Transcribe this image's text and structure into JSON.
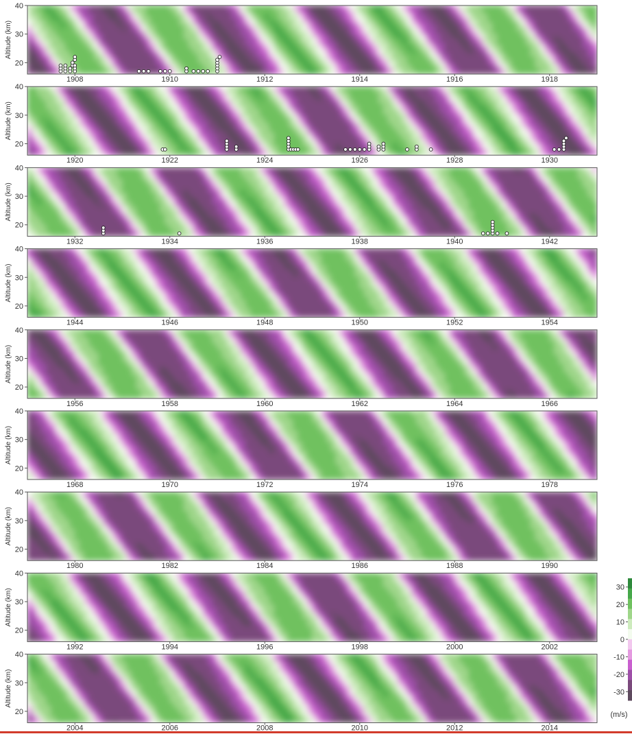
{
  "chart_data": {
    "type": "heatmap",
    "title": "",
    "xlabel": "",
    "ylabel": "Altitude (km)",
    "ylim": [
      16,
      40
    ],
    "y_ticks": [
      20,
      30,
      40
    ],
    "colorbar": {
      "unit": "(m/s)",
      "tick_labels": [
        "30",
        "20",
        "10",
        "0",
        "-10",
        "-20",
        "-30"
      ],
      "tick_values": [
        30,
        20,
        10,
        0,
        -10,
        -20,
        -30
      ],
      "colors_pos_to_neg": [
        "#2f8a3c",
        "#46a84a",
        "#6fc15f",
        "#9fd68a",
        "#cdebbd",
        "#f3fbee",
        "#f2c8ee",
        "#e49ae0",
        "#c95fcf",
        "#9e4fa8",
        "#7a4a7c",
        "#5e4a5e"
      ]
    },
    "colors": {
      "westerly": "#3aa045",
      "easterly": "#8a4a95",
      "neutral": "#f2f8ef"
    },
    "panels": [
      {
        "start_year": 1907.5,
        "tick_years": [
          "1908",
          "1910",
          "1912",
          "1914",
          "1916",
          "1918"
        ],
        "observations": [
          [
            1908.2,
            17
          ],
          [
            1908.2,
            18
          ],
          [
            1908.2,
            19
          ],
          [
            1908.3,
            17
          ],
          [
            1908.3,
            18
          ],
          [
            1908.3,
            19
          ],
          [
            1908.4,
            17
          ],
          [
            1908.4,
            18
          ],
          [
            1908.45,
            19
          ],
          [
            1908.45,
            20
          ],
          [
            1908.5,
            17
          ],
          [
            1908.5,
            18
          ],
          [
            1908.5,
            19
          ],
          [
            1908.5,
            21
          ],
          [
            1908.5,
            22
          ],
          [
            1909.85,
            17
          ],
          [
            1909.95,
            17
          ],
          [
            1910.05,
            17
          ],
          [
            1910.3,
            17
          ],
          [
            1910.4,
            17
          ],
          [
            1910.5,
            17
          ],
          [
            1910.85,
            17
          ],
          [
            1910.85,
            18
          ],
          [
            1911.0,
            17
          ],
          [
            1911.1,
            17
          ],
          [
            1911.2,
            17
          ],
          [
            1911.3,
            17
          ],
          [
            1911.5,
            17
          ],
          [
            1911.5,
            18
          ],
          [
            1911.5,
            19
          ],
          [
            1911.5,
            20
          ],
          [
            1911.5,
            21
          ],
          [
            1911.55,
            22
          ]
        ]
      },
      {
        "start_year": 1919.5,
        "tick_years": [
          "1920",
          "1922",
          "1924",
          "1926",
          "1928",
          "1930"
        ],
        "observations": [
          [
            1922.35,
            18
          ],
          [
            1922.4,
            18
          ],
          [
            1923.7,
            18
          ],
          [
            1923.7,
            19
          ],
          [
            1923.7,
            20
          ],
          [
            1923.7,
            21
          ],
          [
            1923.9,
            18
          ],
          [
            1923.9,
            19
          ],
          [
            1925.0,
            18
          ],
          [
            1925.0,
            19
          ],
          [
            1925.0,
            20
          ],
          [
            1925.0,
            21
          ],
          [
            1925.0,
            22
          ],
          [
            1925.05,
            18
          ],
          [
            1925.1,
            18
          ],
          [
            1925.15,
            18
          ],
          [
            1925.2,
            18
          ],
          [
            1926.2,
            18
          ],
          [
            1926.3,
            18
          ],
          [
            1926.4,
            18
          ],
          [
            1926.5,
            18
          ],
          [
            1926.6,
            18
          ],
          [
            1926.7,
            18
          ],
          [
            1926.7,
            19
          ],
          [
            1926.7,
            20
          ],
          [
            1926.9,
            18
          ],
          [
            1926.9,
            19
          ],
          [
            1927.0,
            18
          ],
          [
            1927.0,
            19
          ],
          [
            1927.0,
            20
          ],
          [
            1927.5,
            18
          ],
          [
            1927.7,
            18
          ],
          [
            1927.7,
            19
          ],
          [
            1928.0,
            18
          ],
          [
            1930.6,
            18
          ],
          [
            1930.7,
            18
          ],
          [
            1930.8,
            18
          ],
          [
            1930.8,
            19
          ],
          [
            1930.8,
            20
          ],
          [
            1930.8,
            21
          ],
          [
            1930.85,
            22
          ]
        ]
      },
      {
        "start_year": 1931.5,
        "tick_years": [
          "1932",
          "1934",
          "1936",
          "1938",
          "1940",
          "1942"
        ],
        "observations": [
          [
            1933.1,
            17
          ],
          [
            1933.1,
            18
          ],
          [
            1933.1,
            19
          ],
          [
            1934.7,
            17
          ],
          [
            1941.1,
            17
          ],
          [
            1941.2,
            17
          ],
          [
            1941.3,
            17
          ],
          [
            1941.3,
            18
          ],
          [
            1941.3,
            19
          ],
          [
            1941.3,
            20
          ],
          [
            1941.3,
            21
          ],
          [
            1941.4,
            17
          ],
          [
            1941.6,
            17
          ]
        ]
      },
      {
        "start_year": 1943.5,
        "tick_years": [
          "1944",
          "1946",
          "1948",
          "1950",
          "1952",
          "1954"
        ],
        "observations": []
      },
      {
        "start_year": 1955.5,
        "tick_years": [
          "1956",
          "1958",
          "1960",
          "1962",
          "1964",
          "1966"
        ],
        "observations": []
      },
      {
        "start_year": 1967.5,
        "tick_years": [
          "1968",
          "1970",
          "1972",
          "1974",
          "1976",
          "1978"
        ],
        "observations": []
      },
      {
        "start_year": 1979.5,
        "tick_years": [
          "1980",
          "1982",
          "1984",
          "1986",
          "1988",
          "1990"
        ],
        "observations": []
      },
      {
        "start_year": 1991.5,
        "tick_years": [
          "1992",
          "1994",
          "1996",
          "1998",
          "2000",
          "2002"
        ],
        "observations": []
      },
      {
        "start_year": 2003.5,
        "tick_years": [
          "2004",
          "2006",
          "2008",
          "2010",
          "2012",
          "2014"
        ],
        "observations": []
      }
    ]
  }
}
